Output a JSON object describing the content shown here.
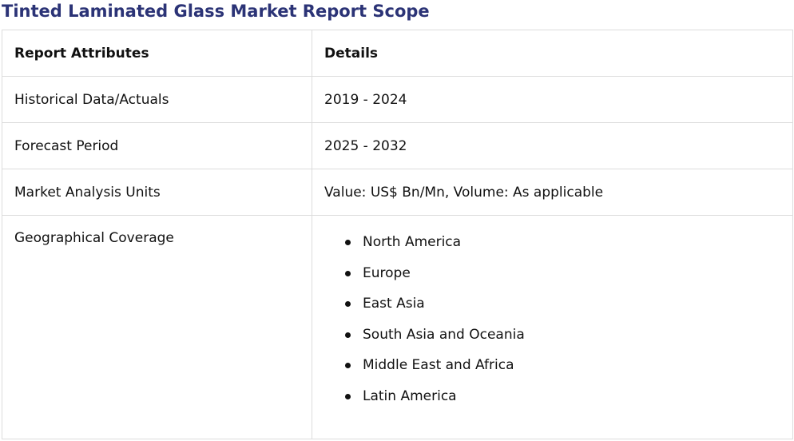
{
  "title": "Tinted Laminated Glass Market Report Scope",
  "colors": {
    "title": "#2b3376",
    "border": "#dcdcdc",
    "text": "#111111"
  },
  "table": {
    "headers": [
      "Report Attributes",
      "Details"
    ],
    "rows": [
      {
        "attribute": "Historical Data/Actuals",
        "detail": "2019 - 2024"
      },
      {
        "attribute": "Forecast Period",
        "detail": "2025 - 2032"
      },
      {
        "attribute": "Market Analysis Units",
        "detail": "Value: US$ Bn/Mn, Volume: As applicable"
      }
    ],
    "geography": {
      "attribute": "Geographical Coverage",
      "regions": [
        "North America",
        "Europe",
        "East Asia",
        "South Asia and Oceania",
        "Middle East and Africa",
        "Latin America"
      ]
    }
  }
}
